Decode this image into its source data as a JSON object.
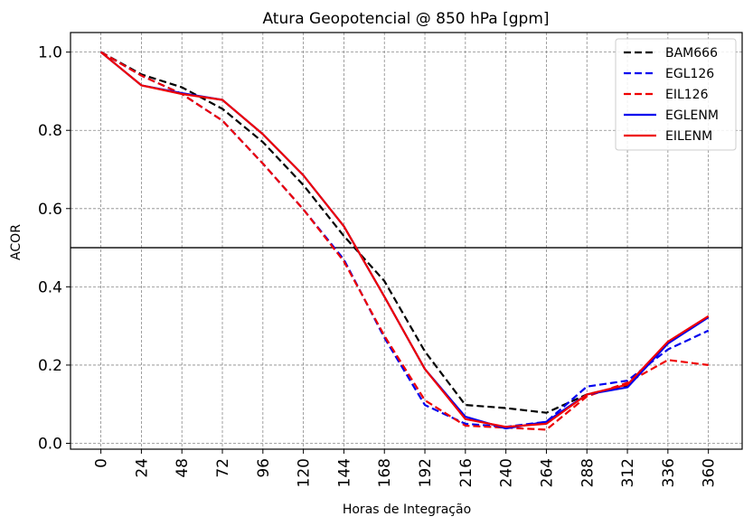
{
  "chart_data": {
    "type": "line",
    "title": "Atura Geopotencial @ 850 hPa [gpm]",
    "xlabel": "Horas de Integração",
    "ylabel": "ACOR",
    "x": [
      0,
      24,
      48,
      72,
      96,
      120,
      144,
      168,
      192,
      216,
      240,
      264,
      288,
      312,
      336,
      360
    ],
    "x_tick_labels": [
      "0",
      "24",
      "48",
      "72",
      "96",
      "120",
      "144",
      "168",
      "192",
      "216",
      "240",
      "264",
      "288",
      "312",
      "336",
      "360"
    ],
    "y_ticks": [
      0.0,
      0.2,
      0.4,
      0.6,
      0.8,
      1.0
    ],
    "y_tick_labels": [
      "0.0",
      "0.2",
      "0.4",
      "0.6",
      "0.8",
      "1.0"
    ],
    "xlim": [
      -18,
      380
    ],
    "ylim": [
      -0.015,
      1.05
    ],
    "grid": true,
    "reference_line": 0.5,
    "legend_position": "top-right",
    "series": [
      {
        "name": "BAM666",
        "color": "#000000",
        "style": "dashed",
        "values": [
          1.0,
          0.943,
          0.91,
          0.855,
          0.77,
          0.66,
          0.53,
          0.415,
          0.235,
          0.098,
          0.09,
          0.078,
          0.125,
          0.148,
          0.258,
          0.323
        ]
      },
      {
        "name": "EGL126",
        "color": "#0000ee",
        "style": "dashed",
        "values": [
          1.0,
          0.94,
          0.893,
          0.825,
          0.715,
          0.598,
          0.47,
          0.27,
          0.098,
          0.05,
          0.042,
          0.055,
          0.145,
          0.16,
          0.24,
          0.288
        ]
      },
      {
        "name": "EIL126",
        "color": "#ee0000",
        "style": "dashed",
        "values": [
          1.0,
          0.94,
          0.893,
          0.825,
          0.715,
          0.598,
          0.465,
          0.275,
          0.11,
          0.045,
          0.04,
          0.035,
          0.12,
          0.155,
          0.213,
          0.2
        ]
      },
      {
        "name": "EGLENM",
        "color": "#0000ee",
        "style": "solid",
        "values": [
          1.0,
          0.915,
          0.895,
          0.878,
          0.79,
          0.685,
          0.555,
          0.375,
          0.19,
          0.068,
          0.038,
          0.055,
          0.125,
          0.143,
          0.255,
          0.322
        ]
      },
      {
        "name": "EILENM",
        "color": "#ee0000",
        "style": "solid",
        "values": [
          1.0,
          0.915,
          0.893,
          0.878,
          0.79,
          0.685,
          0.555,
          0.375,
          0.19,
          0.062,
          0.042,
          0.05,
          0.125,
          0.15,
          0.26,
          0.325
        ]
      }
    ]
  }
}
